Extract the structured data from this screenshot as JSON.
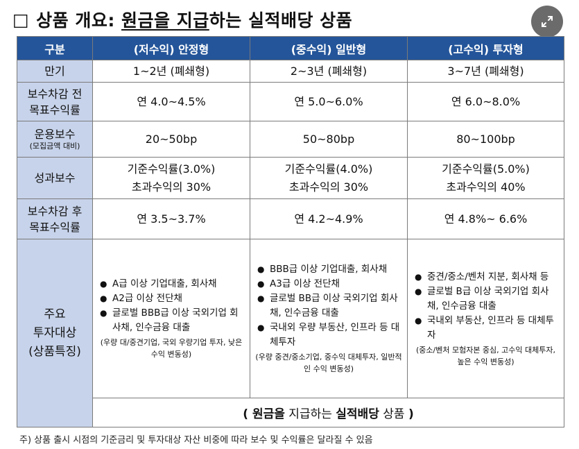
{
  "title": {
    "box": "□",
    "pre": "상품 개요: ",
    "underlined": "원금을 지급",
    "post": "하는 실적배당 상품"
  },
  "header": [
    "구분",
    "(저수익) 안정형",
    "(중수익) 일반형",
    "(고수익) 투자형"
  ],
  "rows": {
    "maturity": {
      "label": "만기",
      "values": [
        "1~2년 (폐쇄형)",
        "2~3년 (폐쇄형)",
        "3~7년 (폐쇄형)"
      ]
    },
    "pre_fee": {
      "label1": "보수차감 전",
      "label2": "목표수익률",
      "values": [
        "연 4.0~4.5%",
        "연 5.0~6.0%",
        "연 6.0~8.0%"
      ]
    },
    "mgmt_fee": {
      "label": "운용보수",
      "sublabel": "(모집금액 대비)",
      "values": [
        "20~50bp",
        "50~80bp",
        "80~100bp"
      ]
    },
    "perf_fee": {
      "label": "성과보수",
      "values": [
        {
          "l1": "기준수익률(3.0%)",
          "l2": "초과수익의 30%"
        },
        {
          "l1": "기준수익률(4.0%)",
          "l2": "초과수익의 30%"
        },
        {
          "l1": "기준수익률(5.0%)",
          "l2": "초과수익의 40%"
        }
      ]
    },
    "post_fee": {
      "label1": "보수차감 후",
      "label2": "목표수익률",
      "values": [
        "연 3.5~3.7%",
        "연 4.2~4.9%",
        "연 4.8%~ 6.6%"
      ]
    },
    "investment": {
      "label1": "주요",
      "label2": "투자대상",
      "label3": "(상품특징)",
      "cols": [
        {
          "items": [
            "A급 이상 기업대출, 회사채",
            "A2급 이상 전단채",
            "글로벌 BBB급 이상 국외기업 회사채, 인수금융 대출"
          ],
          "note": "(우량 대/중견기업, 국외 우량기업 투자, 낮은 수익 변동성)"
        },
        {
          "items": [
            "BBB급 이상 기업대출, 회사채",
            "A3급 이상 전단채",
            "글로벌 BB급 이상 국외기업 회사채, 인수금융 대출",
            "국내외 우량 부동산, 인프라 등 대체투자"
          ],
          "note": "(우량 중견/중소기업, 중수익 대체투자, 일반적인 수익 변동성)"
        },
        {
          "items": [
            "중견/중소/벤처 지분, 회사채 등",
            "글로벌 B급 이상 국외기업 회사채, 인수금융 대출",
            "국내외 부동산, 인프라 등 대체투자"
          ],
          "note": "(중소/벤처 모험자본 중심, 고수익 대체투자, 높은 수익 변동성)"
        }
      ]
    },
    "bottom": {
      "open": "( ",
      "b1": "원금을",
      "t1": " 지급하는 ",
      "b2": "실적배당",
      "t2": " 상품 ",
      "close": ")"
    }
  },
  "footnote": "주) 상품 출시 시점의 기준금리 및 투자대상 자산 비중에 따라 보수 및 수익률은 달라질 수 있음",
  "colors": {
    "header_bg": "#24559a",
    "label_bg": "#c7d3ea",
    "expand_bg": "#6b6b6b"
  },
  "icons": {
    "expand": "expand-arrows-icon"
  }
}
